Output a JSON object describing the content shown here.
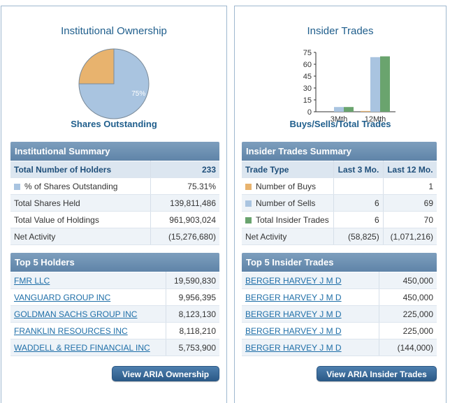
{
  "colors": {
    "buys": "#e8b36e",
    "sells": "#a9c4e0",
    "total": "#6aa46e",
    "header": "#5f84a8",
    "title": "#1f5e8c",
    "link": "#1f6fa8"
  },
  "ownership": {
    "title": "Institutional Ownership",
    "chart_caption": "Shares Outstanding",
    "chart_data": {
      "type": "pie",
      "title": "Institutional Ownership",
      "caption": "Shares Outstanding",
      "slices": [
        {
          "label": "% of Shares Outstanding",
          "value": 75,
          "display": "75%",
          "color": "#a9c4e0"
        },
        {
          "label": "Other",
          "value": 25,
          "color": "#e8b36e"
        }
      ]
    },
    "summary": {
      "header": "Institutional Summary",
      "col_header": "Total Number of Holders",
      "col_value": "233",
      "rows": [
        {
          "label": "% of Shares Outstanding",
          "value": "75.31%",
          "swatch": "sells"
        },
        {
          "label": "Total Shares Held",
          "value": "139,811,486"
        },
        {
          "label": "Total Value of Holdings",
          "value": "961,903,024"
        },
        {
          "label": "Net Activity",
          "value": "(15,276,680)"
        }
      ]
    },
    "top": {
      "header": "Top 5 Holders",
      "rows": [
        {
          "name": "FMR LLC",
          "value": "19,590,830"
        },
        {
          "name": "VANGUARD GROUP INC",
          "value": "9,956,395"
        },
        {
          "name": "GOLDMAN SACHS GROUP INC",
          "value": "8,123,130"
        },
        {
          "name": "FRANKLIN RESOURCES INC",
          "value": "8,118,210"
        },
        {
          "name": "WADDELL & REED FINANCIAL INC",
          "value": "5,753,900"
        }
      ]
    },
    "button": "View ARIA Ownership"
  },
  "insider": {
    "title": "Insider Trades",
    "chart_caption": "Buys/Sells/Total Trades",
    "chart_data": {
      "type": "bar",
      "title": "Insider Trades",
      "caption": "Buys/Sells/Total Trades",
      "categories": [
        "3Mth",
        "12Mth"
      ],
      "series": [
        {
          "name": "Number of Buys",
          "values": [
            0,
            1
          ],
          "color": "#e8b36e"
        },
        {
          "name": "Number of Sells",
          "values": [
            6,
            69
          ],
          "color": "#a9c4e0"
        },
        {
          "name": "Total Insider Trades",
          "values": [
            6,
            70
          ],
          "color": "#6aa46e"
        }
      ],
      "yticks": [
        "75",
        "60",
        "45",
        "30",
        "15",
        "0"
      ],
      "ylim": [
        0,
        75
      ]
    },
    "summary": {
      "header": "Insider Trades Summary",
      "col_type": "Trade Type",
      "col_3mo": "Last 3 Mo.",
      "col_12mo": "Last 12 Mo.",
      "rows": [
        {
          "label": "Number of Buys",
          "m3": "",
          "m12": "1",
          "swatch": "buys"
        },
        {
          "label": "Number of Sells",
          "m3": "6",
          "m12": "69",
          "swatch": "sells"
        },
        {
          "label": "Total Insider Trades",
          "m3": "6",
          "m12": "70",
          "swatch": "total"
        },
        {
          "label": "Net Activity",
          "m3": "(58,825)",
          "m12": "(1,071,216)"
        }
      ]
    },
    "top": {
      "header": "Top 5 Insider Trades",
      "rows": [
        {
          "name": "BERGER HARVEY J M D",
          "value": "450,000"
        },
        {
          "name": "BERGER HARVEY J M D",
          "value": "450,000"
        },
        {
          "name": "BERGER HARVEY J M D",
          "value": "225,000"
        },
        {
          "name": "BERGER HARVEY J M D",
          "value": "225,000"
        },
        {
          "name": "BERGER HARVEY J M D",
          "value": "(144,000)"
        }
      ]
    },
    "button": "View ARIA Insider Trades"
  }
}
